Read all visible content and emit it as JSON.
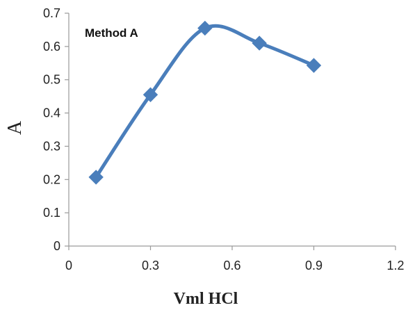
{
  "chart_data": {
    "type": "line",
    "smooth": true,
    "x": [
      0.1,
      0.3,
      0.5,
      0.7,
      0.9
    ],
    "series": [
      {
        "values": [
          0.207,
          0.455,
          0.655,
          0.61,
          0.543
        ],
        "color": "#4a7ebb",
        "marker": "diamond"
      }
    ],
    "annotation": "Method A",
    "xlabel": "Vml HCl",
    "ylabel": "A",
    "xlim": [
      0,
      1.2
    ],
    "ylim": [
      0,
      0.7
    ],
    "xticks": [
      0,
      0.3,
      0.6,
      0.9,
      1.2
    ],
    "xtick_labels": [
      "0",
      "0.3",
      "0.6",
      "0.9",
      "1.2"
    ],
    "yticks": [
      0,
      0.1,
      0.2,
      0.3,
      0.4,
      0.5,
      0.6,
      0.7
    ],
    "ytick_labels": [
      "0",
      "0.1",
      "0.2",
      "0.3",
      "0.4",
      "0.5",
      "0.6",
      "0.7"
    ],
    "grid": false,
    "legend": "none"
  }
}
